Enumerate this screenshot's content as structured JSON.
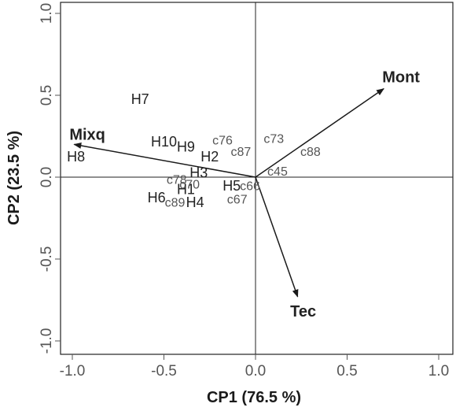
{
  "chart_data": {
    "type": "scatter",
    "subtype": "biplot",
    "xlabel": "CP1 (76.5 %)",
    "ylabel": "CP2 (23.5 %)",
    "xlim": [
      -1.1,
      1.1
    ],
    "ylim": [
      -1.1,
      1.1
    ],
    "xticks": [
      -1.0,
      -0.5,
      0.0,
      0.5,
      1.0
    ],
    "xtick_labels": [
      "-1.0",
      "-0.5",
      "0.0",
      "0.5",
      "1.0"
    ],
    "yticks": [
      -1.0,
      -0.5,
      0.0,
      0.5,
      1.0
    ],
    "ytick_labels": [
      "-1.0",
      "-0.5",
      "0.0",
      "0.5",
      "1.0"
    ],
    "grid": false,
    "reference_lines": {
      "x": 0,
      "y": 0
    },
    "vectors": [
      {
        "label": "Mont",
        "x": 0.7,
        "y": 0.54
      },
      {
        "label": "Mixq",
        "x": -0.99,
        "y": 0.2
      },
      {
        "label": "Tec",
        "x": 0.23,
        "y": -0.73
      }
    ],
    "points": [
      {
        "label": "H7",
        "x": -0.63,
        "y": 0.47,
        "kind": "site"
      },
      {
        "label": "H8",
        "x": -0.98,
        "y": 0.12,
        "kind": "site"
      },
      {
        "label": "H10",
        "x": -0.5,
        "y": 0.21,
        "kind": "site"
      },
      {
        "label": "H9",
        "x": -0.38,
        "y": 0.18,
        "kind": "site"
      },
      {
        "label": "H2",
        "x": -0.25,
        "y": 0.12,
        "kind": "site"
      },
      {
        "label": "H3",
        "x": -0.31,
        "y": 0.02,
        "kind": "site"
      },
      {
        "label": "H1",
        "x": -0.38,
        "y": -0.08,
        "kind": "site"
      },
      {
        "label": "H6",
        "x": -0.54,
        "y": -0.13,
        "kind": "site"
      },
      {
        "label": "H4",
        "x": -0.33,
        "y": -0.16,
        "kind": "site"
      },
      {
        "label": "H5",
        "x": -0.13,
        "y": -0.06,
        "kind": "site"
      },
      {
        "label": "c76",
        "x": -0.18,
        "y": 0.22,
        "kind": "sample"
      },
      {
        "label": "c87",
        "x": -0.08,
        "y": 0.15,
        "kind": "sample"
      },
      {
        "label": "c73",
        "x": 0.1,
        "y": 0.23,
        "kind": "sample"
      },
      {
        "label": "c88",
        "x": 0.3,
        "y": 0.15,
        "kind": "sample"
      },
      {
        "label": "c45",
        "x": 0.12,
        "y": 0.03,
        "kind": "sample"
      },
      {
        "label": "c78",
        "x": -0.43,
        "y": -0.02,
        "kind": "sample"
      },
      {
        "label": "c70",
        "x": -0.36,
        "y": -0.05,
        "kind": "sample"
      },
      {
        "label": "c66",
        "x": -0.03,
        "y": -0.06,
        "kind": "sample"
      },
      {
        "label": "c67",
        "x": -0.1,
        "y": -0.14,
        "kind": "sample"
      },
      {
        "label": "c89",
        "x": -0.44,
        "y": -0.16,
        "kind": "sample"
      }
    ]
  }
}
